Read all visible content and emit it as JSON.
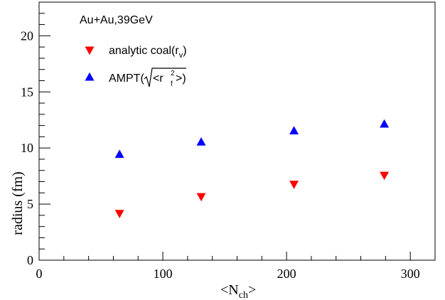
{
  "chart_data": {
    "type": "scatter",
    "annotation": "Au+Au,39GeV",
    "xlabel": {
      "main": "<N",
      "sub": "ch",
      "close": ">"
    },
    "ylabel": "radius (fm)",
    "xlim": [
      0,
      320
    ],
    "ylim": [
      0,
      23
    ],
    "x_ticks": [
      0,
      100,
      200,
      300
    ],
    "y_ticks": [
      0,
      5,
      10,
      15,
      20
    ],
    "legend_placement": "top-left",
    "grid": false,
    "series": [
      {
        "name": "analytic coal(r_v)",
        "legend": {
          "prefix": "analytic coal(r",
          "sub": "v",
          "suffix": ")"
        },
        "marker": "triangle-down",
        "color": "#ff0000",
        "x": [
          65,
          131,
          206,
          279
        ],
        "y": [
          4.2,
          5.7,
          6.8,
          7.6
        ]
      },
      {
        "name": "AMPT(sqrt(<r_f^2>))",
        "legend": {
          "prefix": "AMPT(",
          "inner_open": "<r",
          "sup": "2",
          "sub": "f",
          "inner_close": ">",
          "suffix": ")"
        },
        "marker": "triangle-up",
        "color": "#0000ff",
        "x": [
          65,
          131,
          206,
          279
        ],
        "y": [
          9.4,
          10.5,
          11.5,
          12.1
        ]
      }
    ]
  }
}
